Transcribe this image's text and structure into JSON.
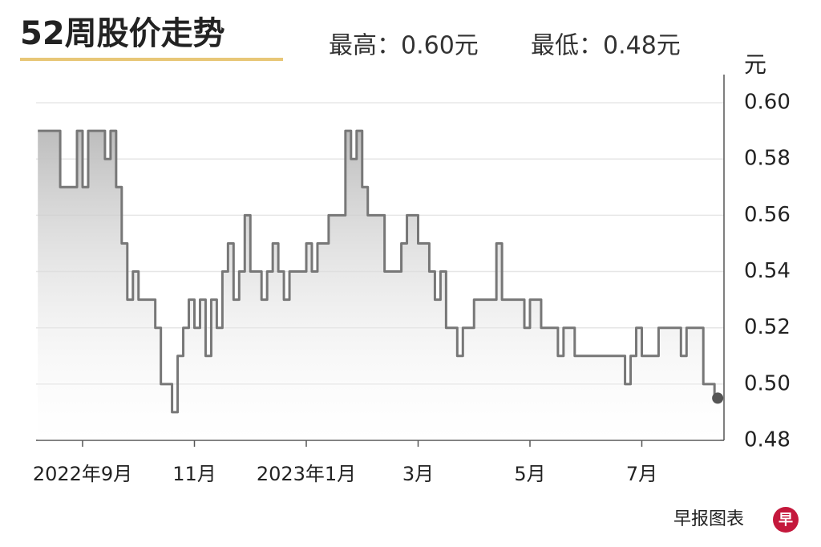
{
  "chart_data": {
    "type": "line",
    "title": "52周股价走势",
    "subtitle": [
      "最高：0.60元",
      "最低：0.48元"
    ],
    "y_axis_label": "元",
    "source": "早报图表",
    "logo": "早",
    "step": true,
    "color": "#777777",
    "grid": true,
    "ylim": [
      0.48,
      0.61
    ],
    "yticks": [
      {
        "value": 0.48,
        "label": "0.48"
      },
      {
        "value": 0.5,
        "label": "0.50"
      },
      0.52,
      0.54,
      0.56,
      0.58,
      {
        "value": 0.6,
        "label": "0.60"
      }
    ],
    "categories": [
      null,
      null,
      null,
      null,
      null,
      null,
      null,
      null,
      "2022年9月",
      null,
      null,
      null,
      null,
      null,
      null,
      null,
      null,
      null,
      null,
      null,
      null,
      null,
      null,
      null,
      null,
      null,
      null,
      null,
      "11月",
      null,
      null,
      null,
      null,
      null,
      null,
      null,
      null,
      null,
      null,
      null,
      null,
      null,
      null,
      null,
      null,
      null,
      null,
      null,
      "2023年1月",
      null,
      null,
      null,
      null,
      null,
      null,
      null,
      null,
      null,
      null,
      null,
      null,
      null,
      null,
      null,
      null,
      null,
      null,
      null,
      "3月",
      null,
      null,
      null,
      null,
      null,
      null,
      null,
      null,
      null,
      null,
      null,
      null,
      null,
      null,
      null,
      null,
      null,
      null,
      null,
      "5月",
      null,
      null,
      null,
      null,
      null,
      null,
      null,
      null,
      null,
      null,
      null,
      null,
      null,
      null,
      null,
      null,
      null,
      null,
      null,
      "7月",
      null,
      null,
      null,
      null,
      null,
      null,
      null,
      null,
      null,
      null,
      null,
      null,
      null,
      null
    ],
    "values": [
      0.59,
      0.59,
      0.59,
      0.59,
      0.59,
      0.57,
      0.57,
      0.57,
      0.59,
      0.57,
      0.59,
      0.59,
      0.59,
      0.58,
      0.59,
      0.57,
      0.55,
      0.53,
      0.54,
      0.53,
      0.53,
      0.53,
      0.52,
      0.5,
      0.5,
      0.49,
      0.51,
      0.52,
      0.53,
      0.52,
      0.53,
      0.51,
      0.53,
      0.52,
      0.54,
      0.55,
      0.53,
      0.54,
      0.56,
      0.54,
      0.54,
      0.53,
      0.54,
      0.55,
      0.54,
      0.53,
      0.54,
      0.54,
      0.54,
      0.55,
      0.54,
      0.55,
      0.55,
      0.56,
      0.56,
      0.56,
      0.59,
      0.58,
      0.59,
      0.57,
      0.56,
      0.56,
      0.56,
      0.54,
      0.54,
      0.54,
      0.55,
      0.56,
      0.56,
      0.55,
      0.55,
      0.54,
      0.53,
      0.54,
      0.52,
      0.52,
      0.51,
      0.52,
      0.52,
      0.53,
      0.53,
      0.53,
      0.53,
      0.55,
      0.53,
      0.53,
      0.53,
      0.53,
      0.52,
      0.53,
      0.53,
      0.52,
      0.52,
      0.52,
      0.51,
      0.52,
      0.52,
      0.51,
      0.51,
      0.51,
      0.51,
      0.51,
      0.51,
      0.51,
      0.51,
      0.51,
      0.5,
      0.51,
      0.52,
      0.51,
      0.51,
      0.51,
      0.52,
      0.52,
      0.52,
      0.52,
      0.51,
      0.52,
      0.52,
      0.52,
      0.5,
      0.5,
      0.495
    ]
  }
}
